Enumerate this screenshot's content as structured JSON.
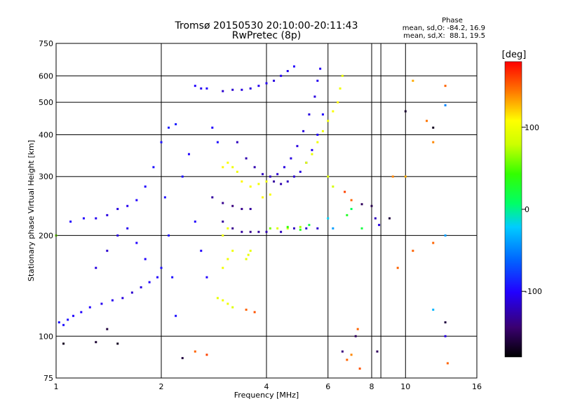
{
  "chart_data": {
    "type": "scatter",
    "title": "Tromsø 20150530 20:10:00-20:11:43",
    "subtitle": "RwPretec (8p)",
    "xlabel": "Frequency [MHz]",
    "ylabel": "Stationary phase Virtual Height [km]",
    "x_scale": "log",
    "y_scale": "log",
    "xlim": [
      1,
      16
    ],
    "ylim": [
      75,
      750
    ],
    "x_ticks": [
      1,
      2,
      4,
      6,
      8,
      10,
      16
    ],
    "y_ticks": [
      75,
      100,
      200,
      300,
      400,
      500,
      600,
      750
    ],
    "grid": true,
    "stats": {
      "header": "Phase",
      "line_o": "mean, sd,O: -84.2, 16.9",
      "line_x": "mean, sd,X:  88.1, 19.5"
    },
    "colorbar": {
      "label": "[deg]",
      "range": [
        -180,
        180
      ],
      "ticks": [
        100,
        0,
        -100
      ],
      "tick_labels": [
        "100",
        "0",
        "-100"
      ]
    },
    "series": [
      {
        "points": [
          [
            1.02,
            110,
            -95
          ],
          [
            1.05,
            108,
            -95
          ],
          [
            1.08,
            112,
            -95
          ],
          [
            1.12,
            115,
            -100
          ],
          [
            1.18,
            118,
            -100
          ],
          [
            1.25,
            122,
            -100
          ],
          [
            1.35,
            125,
            -105
          ],
          [
            1.45,
            128,
            -105
          ],
          [
            1.55,
            130,
            -110
          ],
          [
            1.65,
            135,
            -115
          ],
          [
            1.75,
            140,
            -110
          ],
          [
            1.85,
            145,
            -100
          ],
          [
            1.95,
            150,
            -100
          ],
          [
            2.0,
            160,
            -95
          ],
          [
            1.1,
            220,
            -100
          ],
          [
            1.2,
            225,
            -100
          ],
          [
            1.3,
            225,
            -105
          ],
          [
            1.4,
            230,
            -110
          ],
          [
            1.5,
            240,
            -110
          ],
          [
            1.6,
            245,
            -105
          ],
          [
            1.7,
            255,
            -100
          ],
          [
            1.8,
            280,
            -100
          ],
          [
            1.9,
            320,
            -95
          ],
          [
            2.0,
            380,
            -95
          ],
          [
            2.1,
            420,
            -90
          ],
          [
            2.2,
            430,
            -90
          ],
          [
            2.05,
            260,
            -95
          ],
          [
            2.1,
            200,
            -95
          ],
          [
            2.15,
            150,
            -95
          ],
          [
            2.2,
            115,
            -95
          ],
          [
            2.3,
            300,
            -95
          ],
          [
            2.4,
            350,
            -100
          ],
          [
            2.5,
            560,
            -100
          ],
          [
            2.6,
            550,
            -105
          ],
          [
            2.7,
            550,
            -100
          ],
          [
            2.8,
            420,
            -100
          ],
          [
            2.9,
            380,
            -95
          ],
          [
            2.5,
            220,
            -100
          ],
          [
            2.6,
            180,
            -100
          ],
          [
            2.7,
            150,
            -100
          ],
          [
            1.3,
            160,
            -110
          ],
          [
            1.4,
            180,
            -115
          ],
          [
            1.5,
            200,
            -110
          ],
          [
            1.6,
            210,
            -105
          ],
          [
            1.7,
            190,
            -100
          ],
          [
            1.8,
            170,
            -100
          ]
        ]
      },
      {
        "points": [
          [
            2.8,
            260,
            -130
          ],
          [
            3.0,
            250,
            -135
          ],
          [
            3.2,
            245,
            -140
          ],
          [
            3.4,
            240,
            -135
          ],
          [
            3.6,
            240,
            -130
          ],
          [
            3.0,
            220,
            -130
          ],
          [
            3.2,
            210,
            -135
          ],
          [
            3.4,
            205,
            -130
          ],
          [
            3.6,
            205,
            -135
          ],
          [
            3.8,
            205,
            -130
          ],
          [
            4.0,
            205,
            -125
          ],
          [
            4.4,
            205,
            -120
          ],
          [
            4.8,
            210,
            -120
          ],
          [
            5.2,
            210,
            -115
          ],
          [
            5.6,
            210,
            -115
          ],
          [
            3.3,
            380,
            -120
          ],
          [
            3.5,
            340,
            -125
          ],
          [
            3.7,
            320,
            -125
          ],
          [
            3.9,
            305,
            -120
          ],
          [
            4.1,
            300,
            -120
          ],
          [
            4.3,
            305,
            -115
          ],
          [
            4.5,
            320,
            -110
          ],
          [
            4.7,
            340,
            -110
          ],
          [
            4.9,
            370,
            -110
          ],
          [
            5.1,
            410,
            -110
          ],
          [
            5.3,
            460,
            -110
          ],
          [
            5.5,
            520,
            -110
          ],
          [
            5.6,
            580,
            -105
          ],
          [
            5.7,
            630,
            -105
          ],
          [
            3.0,
            540,
            -115
          ],
          [
            3.2,
            545,
            -115
          ],
          [
            3.4,
            545,
            -110
          ],
          [
            3.6,
            550,
            -110
          ],
          [
            3.8,
            560,
            -105
          ],
          [
            4.0,
            570,
            -105
          ],
          [
            4.2,
            580,
            -110
          ],
          [
            4.4,
            600,
            -105
          ],
          [
            4.6,
            620,
            -105
          ],
          [
            4.8,
            640,
            -100
          ],
          [
            4.2,
            290,
            -130
          ],
          [
            4.4,
            285,
            -125
          ],
          [
            4.6,
            290,
            -120
          ],
          [
            4.8,
            300,
            -115
          ],
          [
            5.0,
            310,
            -110
          ],
          [
            5.2,
            330,
            -110
          ],
          [
            5.4,
            360,
            -105
          ],
          [
            5.6,
            400,
            -100
          ],
          [
            5.8,
            460,
            -100
          ],
          [
            8.2,
            225,
            -120
          ],
          [
            8.4,
            215,
            -110
          ],
          [
            13.0,
            100,
            -110
          ]
        ]
      },
      {
        "points": [
          [
            2.9,
            130,
            95
          ],
          [
            3.0,
            128,
            100
          ],
          [
            3.1,
            125,
            100
          ],
          [
            3.2,
            122,
            90
          ],
          [
            3.0,
            160,
            100
          ],
          [
            3.1,
            170,
            100
          ],
          [
            3.2,
            180,
            100
          ],
          [
            3.0,
            200,
            100
          ],
          [
            3.1,
            210,
            100
          ],
          [
            3.0,
            320,
            110
          ],
          [
            3.1,
            330,
            105
          ],
          [
            3.2,
            320,
            100
          ],
          [
            3.3,
            310,
            100
          ],
          [
            3.5,
            170,
            95
          ],
          [
            3.55,
            175,
            95
          ],
          [
            3.6,
            180,
            95
          ],
          [
            4.3,
            210,
            90
          ],
          [
            4.6,
            210,
            80
          ],
          [
            5.0,
            212,
            70
          ],
          [
            5.2,
            330,
            90
          ],
          [
            5.4,
            350,
            95
          ],
          [
            5.6,
            380,
            100
          ],
          [
            5.8,
            410,
            100
          ],
          [
            6.0,
            440,
            100
          ],
          [
            6.2,
            470,
            105
          ],
          [
            6.4,
            500,
            110
          ],
          [
            6.5,
            550,
            100
          ],
          [
            6.6,
            600,
            95
          ],
          [
            6.0,
            300,
            90
          ],
          [
            6.2,
            280,
            85
          ],
          [
            3.4,
            290,
            110
          ],
          [
            3.6,
            280,
            105
          ],
          [
            3.8,
            285,
            100
          ],
          [
            4.0,
            290,
            100
          ],
          [
            3.9,
            260,
            110
          ],
          [
            4.1,
            265,
            105
          ]
        ]
      },
      {
        "points": [
          [
            2.5,
            90,
            150
          ],
          [
            2.7,
            88,
            160
          ],
          [
            3.5,
            120,
            150
          ],
          [
            3.7,
            118,
            155
          ],
          [
            6.8,
            85,
            150
          ],
          [
            7.0,
            88,
            140
          ],
          [
            7.3,
            105,
            150
          ],
          [
            7.4,
            80,
            155
          ],
          [
            10.5,
            580,
            130
          ],
          [
            11.5,
            440,
            145
          ],
          [
            12.0,
            380,
            140
          ],
          [
            13.0,
            560,
            150
          ],
          [
            13.2,
            83,
            150
          ],
          [
            9.2,
            300,
            140
          ],
          [
            10.0,
            300,
            130
          ],
          [
            9.5,
            160,
            150
          ],
          [
            10.5,
            180,
            150
          ],
          [
            12.0,
            190,
            150
          ],
          [
            6.7,
            270,
            160
          ],
          [
            7.0,
            255,
            150
          ]
        ]
      },
      {
        "points": [
          [
            1.0,
            200,
            60
          ],
          [
            4.1,
            210,
            60
          ],
          [
            4.6,
            212,
            40
          ],
          [
            5.0,
            208,
            30
          ],
          [
            5.3,
            215,
            20
          ],
          [
            6.8,
            230,
            30
          ],
          [
            7.0,
            240,
            10
          ],
          [
            7.5,
            210,
            20
          ],
          [
            13.0,
            200,
            -40
          ],
          [
            13.0,
            490,
            -50
          ],
          [
            12.0,
            120,
            -30
          ],
          [
            6.0,
            225,
            -20
          ],
          [
            6.2,
            210,
            -40
          ]
        ]
      },
      {
        "points": [
          [
            1.05,
            95,
            -170
          ],
          [
            1.3,
            96,
            -165
          ],
          [
            1.5,
            95,
            -170
          ],
          [
            1.4,
            105,
            -160
          ],
          [
            7.5,
            248,
            -150
          ],
          [
            8.0,
            245,
            -155
          ],
          [
            8.3,
            90,
            -150
          ],
          [
            9.0,
            225,
            -160
          ],
          [
            10.0,
            470,
            -165
          ],
          [
            12.0,
            420,
            -170
          ],
          [
            13.0,
            110,
            -160
          ],
          [
            7.2,
            100,
            -150
          ],
          [
            6.6,
            90,
            -140
          ],
          [
            2.3,
            86,
            -160
          ]
        ]
      }
    ]
  }
}
